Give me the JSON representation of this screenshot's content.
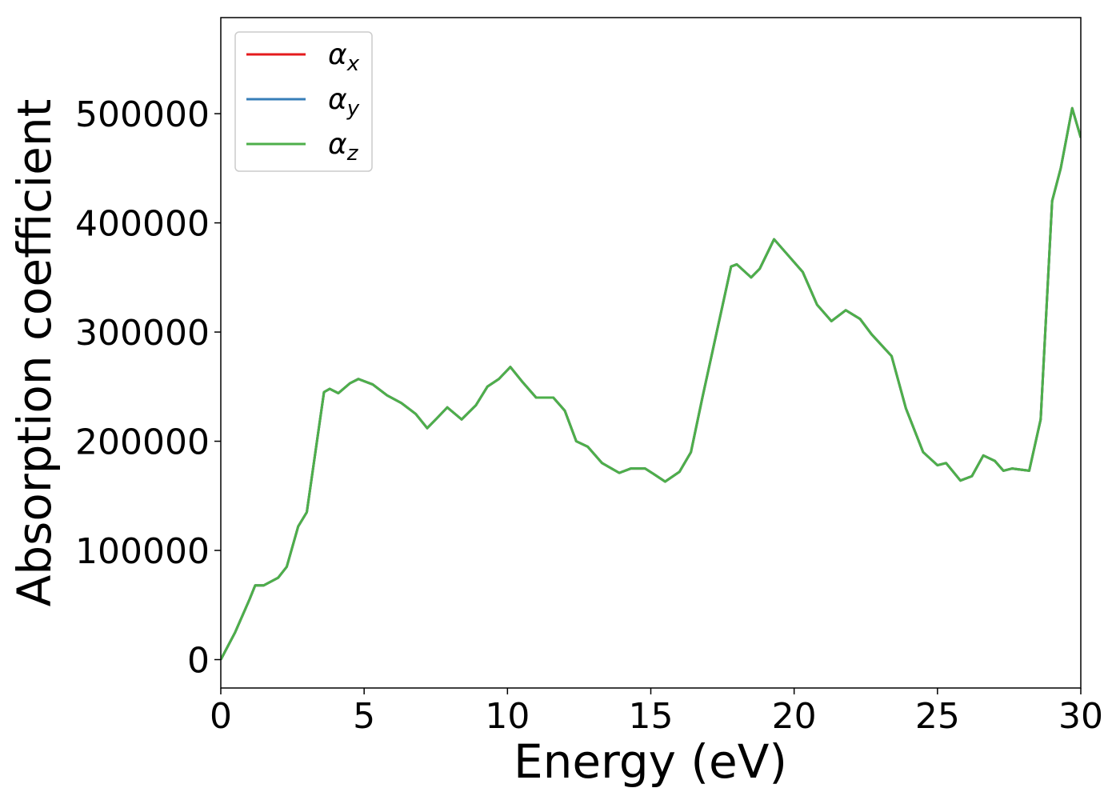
{
  "chart_data": {
    "type": "line",
    "xlabel": "Energy (eV)",
    "ylabel": "Absorption coefficient",
    "x": [
      0,
      0.5,
      1.0,
      1.2,
      1.5,
      2.0,
      2.3,
      2.7,
      3.0,
      3.3,
      3.6,
      3.8,
      4.1,
      4.5,
      4.8,
      5.3,
      5.8,
      6.3,
      6.8,
      7.2,
      7.5,
      7.9,
      8.4,
      8.9,
      9.3,
      9.7,
      10.1,
      10.5,
      11.0,
      11.6,
      12.0,
      12.4,
      12.8,
      13.3,
      13.9,
      14.3,
      14.8,
      15.1,
      15.5,
      16.0,
      16.4,
      16.8,
      17.3,
      17.8,
      18.0,
      18.5,
      18.8,
      19.3,
      19.7,
      20.3,
      20.8,
      21.3,
      21.8,
      22.3,
      22.7,
      23.4,
      23.9,
      24.5,
      25.0,
      25.3,
      25.8,
      26.2,
      26.6,
      27.0,
      27.3,
      27.6,
      28.2,
      28.6,
      29.0,
      29.3,
      29.7,
      30.0
    ],
    "series": [
      {
        "name": "αx",
        "color": "#e41a1c",
        "values": [
          0,
          25000,
          55000,
          68000,
          68000,
          75000,
          85000,
          122000,
          135000,
          190000,
          245000,
          248000,
          244000,
          253000,
          257000,
          252000,
          242000,
          235000,
          225000,
          212000,
          220000,
          231000,
          220000,
          233000,
          250000,
          257000,
          268000,
          255000,
          240000,
          240000,
          228000,
          200000,
          195000,
          180000,
          171000,
          175000,
          175000,
          170000,
          163000,
          172000,
          190000,
          240000,
          300000,
          360000,
          362000,
          350000,
          358000,
          385000,
          373000,
          355000,
          325000,
          310000,
          320000,
          312000,
          298000,
          278000,
          230000,
          190000,
          178000,
          180000,
          164000,
          168000,
          187000,
          182000,
          173000,
          175000,
          173000,
          220000,
          420000,
          450000,
          505000,
          478000
        ]
      },
      {
        "name": "αy",
        "color": "#377eb8",
        "values": [
          0,
          25000,
          55000,
          68000,
          68000,
          75000,
          85000,
          122000,
          135000,
          190000,
          245000,
          248000,
          244000,
          253000,
          257000,
          252000,
          242000,
          235000,
          225000,
          212000,
          220000,
          231000,
          220000,
          233000,
          250000,
          257000,
          268000,
          255000,
          240000,
          240000,
          228000,
          200000,
          195000,
          180000,
          171000,
          175000,
          175000,
          170000,
          163000,
          172000,
          190000,
          240000,
          300000,
          360000,
          362000,
          350000,
          358000,
          385000,
          373000,
          355000,
          325000,
          310000,
          320000,
          312000,
          298000,
          278000,
          230000,
          190000,
          178000,
          180000,
          164000,
          168000,
          187000,
          182000,
          173000,
          175000,
          173000,
          220000,
          420000,
          450000,
          505000,
          478000
        ]
      },
      {
        "name": "αz",
        "color": "#4daf4a",
        "values": [
          0,
          25000,
          55000,
          68000,
          68000,
          75000,
          85000,
          122000,
          135000,
          190000,
          245000,
          248000,
          244000,
          253000,
          257000,
          252000,
          242000,
          235000,
          225000,
          212000,
          220000,
          231000,
          220000,
          233000,
          250000,
          257000,
          268000,
          255000,
          240000,
          240000,
          228000,
          200000,
          195000,
          180000,
          171000,
          175000,
          175000,
          170000,
          163000,
          172000,
          190000,
          240000,
          300000,
          360000,
          362000,
          350000,
          358000,
          385000,
          373000,
          355000,
          325000,
          310000,
          320000,
          312000,
          298000,
          278000,
          230000,
          190000,
          178000,
          180000,
          164000,
          168000,
          187000,
          182000,
          173000,
          175000,
          173000,
          220000,
          420000,
          450000,
          505000,
          478000
        ]
      }
    ],
    "xlim": [
      0,
      30
    ],
    "xticks": [
      0,
      5,
      10,
      15,
      20,
      25,
      30
    ],
    "ylim": [
      -26000,
      588000
    ],
    "yticks": [
      0,
      100000,
      200000,
      300000,
      400000,
      500000
    ],
    "legend": "upper left",
    "grid": false
  }
}
